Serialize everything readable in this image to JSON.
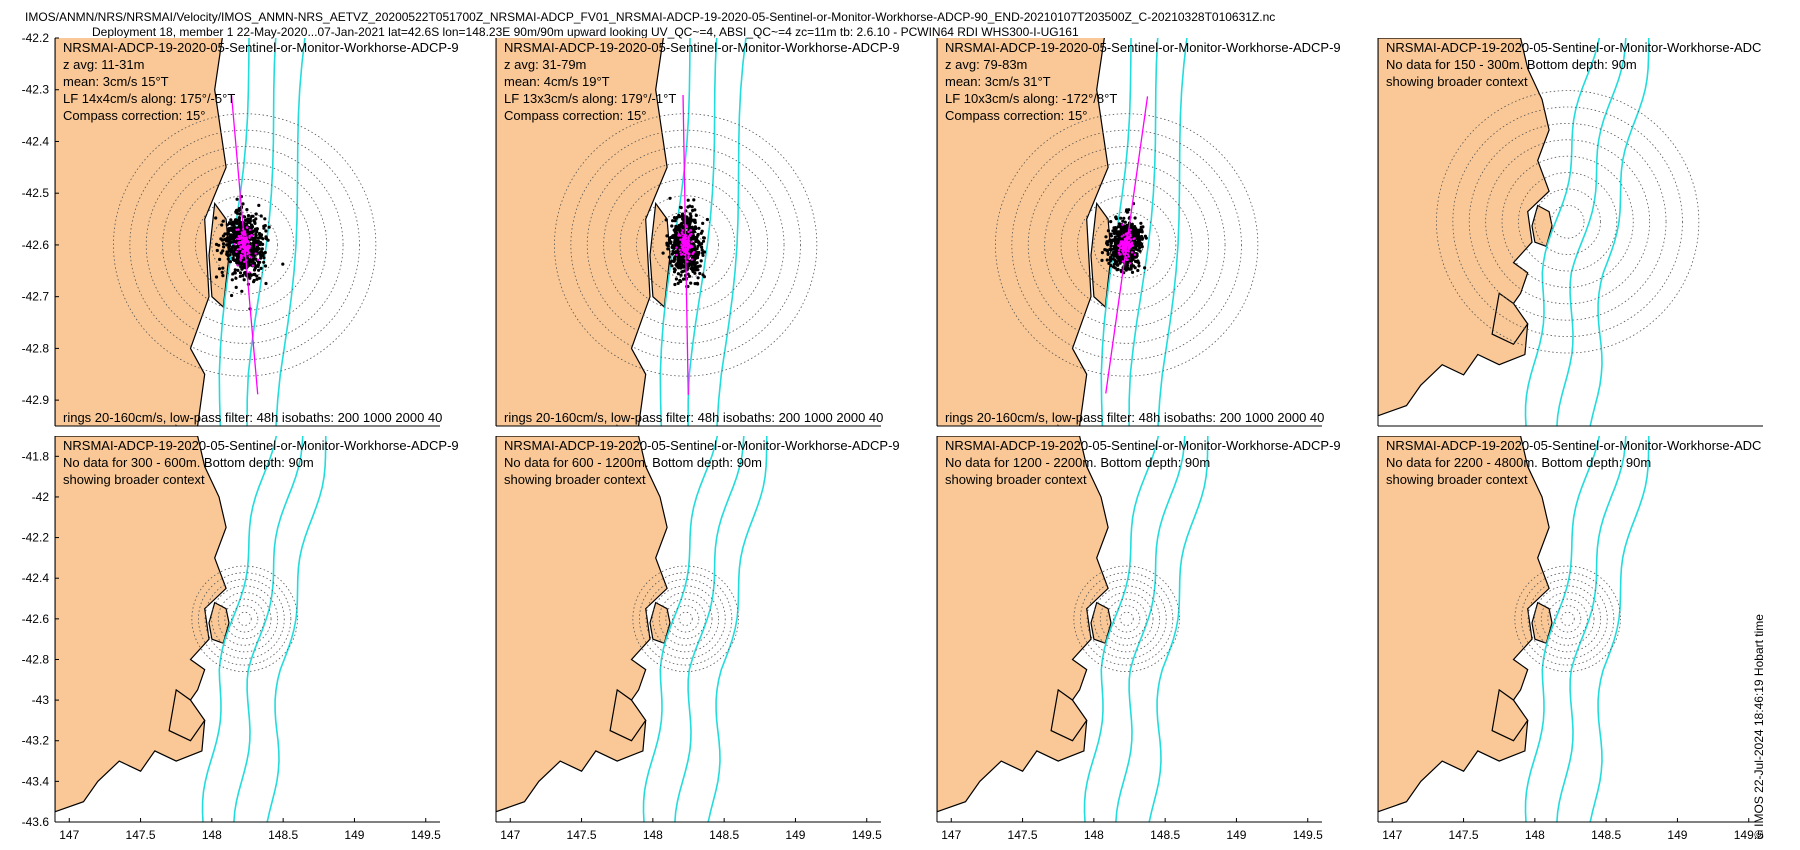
{
  "header": {
    "line1": "IMOS/ANMN/NRS/NRSMAI/Velocity/IMOS_ANMN-NRS_AETVZ_20200522T051700Z_NRSMAI-ADCP_FV01_NRSMAI-ADCP-19-2020-05-Sentinel-or-Monitor-Workhorse-ADCP-90_END-20210107T203500Z_C-20210328T010631Z.nc",
    "line2": "Deployment 18, member 1 22-May-2020...07-Jan-2021 lat=42.6S lon=148.23E 90m/90m upward looking UV_QC~=4, ABSI_QC~=4 zc=11m tb: 2.6.10 - PCWIN64 RDI WHS300-I-UG161"
  },
  "stamp": "© IMOS 22-Jul-2024 18:46:19 Hobart time",
  "colors": {
    "land": "#f9c896",
    "isobath": "#22dcdc",
    "scatter": "#000000",
    "mean": "#ff00ff",
    "ring": "#555555"
  },
  "chart_data": [
    {
      "type": "scatter",
      "panel": 1,
      "title": "NRSMAI-ADCP-19-2020-05-Sentinel-or-Monitor-Workhorse-ADCP-9",
      "info": [
        "z avg: 11-31m",
        "mean: 3cm/s 15°T",
        "LF 14x4cm/s along: 175°/-5°T",
        "Compass correction: 15°"
      ],
      "footer": "rings 20-160cm/s, low-pass filter: 48h isobaths: 200 1000 2000 40",
      "mean_speed_cm_s": 3,
      "mean_dir_degT": 15,
      "lf_major_cm_s": 14,
      "lf_minor_cm_s": 4,
      "along_dir_degT": 175,
      "xlim": [
        146.9,
        149.6
      ],
      "ylim": [
        -42.95,
        -42.2
      ],
      "yticks": [
        -42.2,
        -42.3,
        -42.4,
        -42.5,
        -42.6,
        -42.7,
        -42.8,
        -42.9
      ],
      "mooring": [
        148.23,
        -42.6
      ],
      "rings_cm_s": [
        20,
        40,
        60,
        80,
        100,
        120,
        140,
        160
      ]
    },
    {
      "type": "scatter",
      "panel": 2,
      "title": "NRSMAI-ADCP-19-2020-05-Sentinel-or-Monitor-Workhorse-ADCP-9",
      "info": [
        "z avg: 31-79m",
        "mean: 4cm/s 19°T",
        "LF 13x3cm/s along: 179°/-1°T",
        "Compass correction: 15°"
      ],
      "footer": "rings 20-160cm/s, low-pass filter: 48h isobaths: 200 1000 2000 40",
      "mean_speed_cm_s": 4,
      "mean_dir_degT": 19,
      "lf_major_cm_s": 13,
      "lf_minor_cm_s": 3,
      "along_dir_degT": 179,
      "xlim": [
        146.9,
        149.6
      ],
      "ylim": [
        -42.95,
        -42.2
      ],
      "mooring": [
        148.23,
        -42.6
      ],
      "rings_cm_s": [
        20,
        40,
        60,
        80,
        100,
        120,
        140,
        160
      ]
    },
    {
      "type": "scatter",
      "panel": 3,
      "title": "NRSMAI-ADCP-19-2020-05-Sentinel-or-Monitor-Workhorse-ADCP-9",
      "info": [
        "z avg: 79-83m",
        "mean: 3cm/s 31°T",
        "LF 10x3cm/s along: -172°/8°T",
        "Compass correction: 15°"
      ],
      "footer": "rings 20-160cm/s, low-pass filter: 48h isobaths: 200 1000 2000 40",
      "mean_speed_cm_s": 3,
      "mean_dir_degT": 31,
      "lf_major_cm_s": 10,
      "lf_minor_cm_s": 3,
      "along_dir_degT": -172,
      "xlim": [
        146.9,
        149.6
      ],
      "ylim": [
        -42.95,
        -42.2
      ],
      "mooring": [
        148.23,
        -42.6
      ],
      "rings_cm_s": [
        20,
        40,
        60,
        80,
        100,
        120,
        140,
        160
      ]
    },
    {
      "type": "scatter",
      "panel": 4,
      "title": "NRSMAI-ADCP-19-2020-05-Sentinel-or-Monitor-Workhorse-ADC",
      "info": [
        "No data for 150 - 300m. Bottom depth: 90m",
        "showing broader context"
      ],
      "xlim": [
        146.9,
        149.6
      ],
      "ylim": [
        -43.6,
        -41.7
      ],
      "mooring": [
        148.23,
        -42.6
      ]
    },
    {
      "type": "scatter",
      "panel": 5,
      "title": "NRSMAI-ADCP-19-2020-05-Sentinel-or-Monitor-Workhorse-ADCP-9",
      "info": [
        "No data for 300 - 600m. Bottom depth: 90m",
        "showing broader context"
      ],
      "xlim": [
        146.9,
        149.6
      ],
      "ylim": [
        -43.6,
        -41.7
      ],
      "yticks": [
        -41.8,
        -42,
        -42.2,
        -42.4,
        -42.6,
        -42.8,
        -43,
        -43.2,
        -43.4,
        -43.6
      ],
      "xticks": [
        147,
        147.5,
        148,
        148.5,
        149,
        149.5
      ],
      "mooring": [
        148.23,
        -42.6
      ]
    },
    {
      "type": "scatter",
      "panel": 6,
      "title": "NRSMAI-ADCP-19-2020-05-Sentinel-or-Monitor-Workhorse-ADCP-9",
      "info": [
        "No data for 600 - 1200m. Bottom depth: 90m",
        "showing broader context"
      ],
      "xlim": [
        146.9,
        149.6
      ],
      "ylim": [
        -43.6,
        -41.7
      ],
      "xticks": [
        147,
        147.5,
        148,
        148.5,
        149,
        149.5
      ],
      "mooring": [
        148.23,
        -42.6
      ]
    },
    {
      "type": "scatter",
      "panel": 7,
      "title": "NRSMAI-ADCP-19-2020-05-Sentinel-or-Monitor-Workhorse-ADCP-9",
      "info": [
        "No data for 1200 - 2200m. Bottom depth: 90m",
        "showing broader context"
      ],
      "xlim": [
        146.9,
        149.6
      ],
      "ylim": [
        -43.6,
        -41.7
      ],
      "xticks": [
        147,
        147.5,
        148,
        148.5,
        149,
        149.5
      ],
      "mooring": [
        148.23,
        -42.6
      ]
    },
    {
      "type": "scatter",
      "panel": 8,
      "title": "NRSMAI-ADCP-19-2020-05-Sentinel-or-Monitor-Workhorse-ADC",
      "info": [
        "No data for 2200 - 4800m. Bottom depth: 90m",
        "showing broader context"
      ],
      "xlim": [
        146.9,
        149.6
      ],
      "ylim": [
        -43.6,
        -41.7
      ],
      "xticks": [
        147,
        147.5,
        148,
        148.5,
        149,
        149.5
      ],
      "mooring": [
        148.23,
        -42.6
      ]
    }
  ]
}
